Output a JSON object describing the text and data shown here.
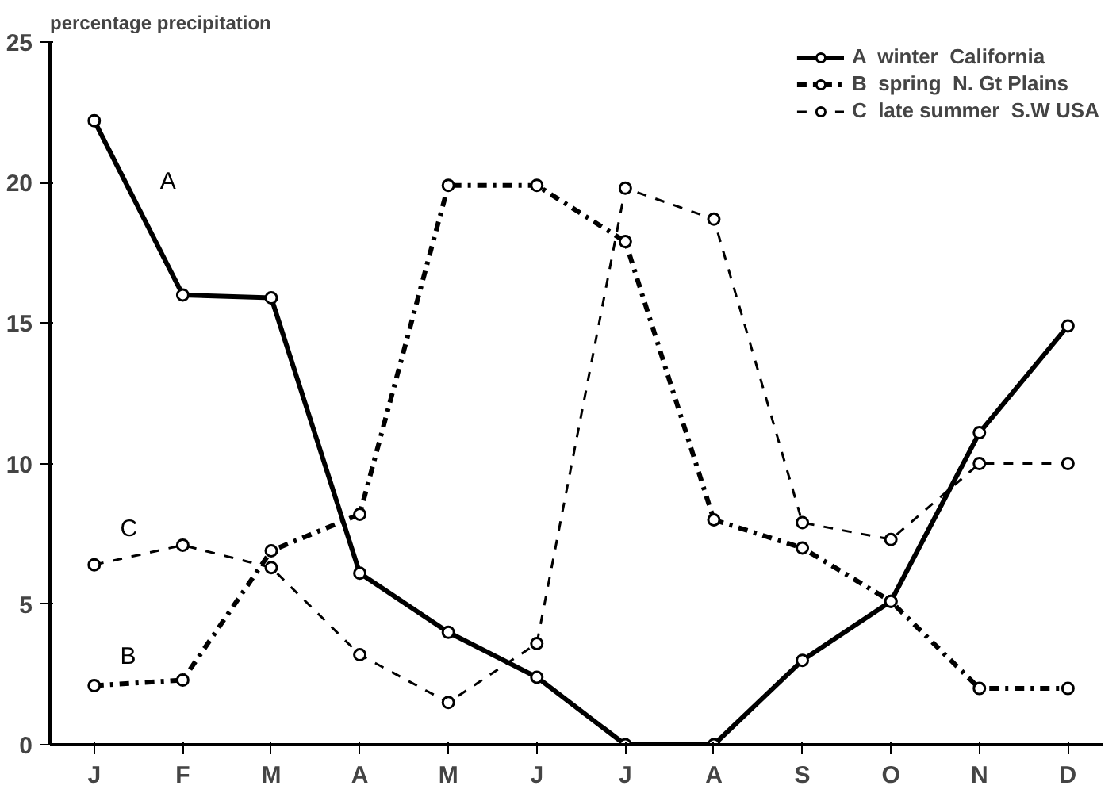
{
  "chart_data": {
    "type": "line",
    "ylabel": "percentage precipitation",
    "categories": [
      "J",
      "F",
      "M",
      "A",
      "M",
      "J",
      "J",
      "A",
      "S",
      "O",
      "N",
      "D"
    ],
    "series": [
      {
        "name": "A  winter  California",
        "color": "#000000",
        "line_style": "solid",
        "values": [
          22.2,
          16.0,
          15.9,
          6.1,
          4.0,
          2.4,
          0,
          0,
          3.0,
          5.1,
          11.1,
          14.9
        ]
      },
      {
        "name": "B  spring  N. Gt Plains",
        "color": "#000000",
        "line_style": "dashdot",
        "values": [
          2.1,
          2.3,
          6.9,
          8.2,
          19.9,
          19.9,
          17.9,
          8.0,
          7.0,
          5.1,
          2.0,
          2.0
        ]
      },
      {
        "name": "C  late summer  S.W USA",
        "color": "#000000",
        "line_style": "dashed",
        "values": [
          6.4,
          7.1,
          6.3,
          3.2,
          1.5,
          3.6,
          19.8,
          18.7,
          7.9,
          7.3,
          10.0,
          10.0
        ]
      }
    ],
    "annotations": [
      "A",
      "B",
      "C"
    ],
    "ylim": [
      0,
      25
    ],
    "yticks": [
      0,
      5,
      10,
      15,
      20,
      25
    ],
    "grid": false,
    "legend": "top right",
    "marker": "circle"
  }
}
